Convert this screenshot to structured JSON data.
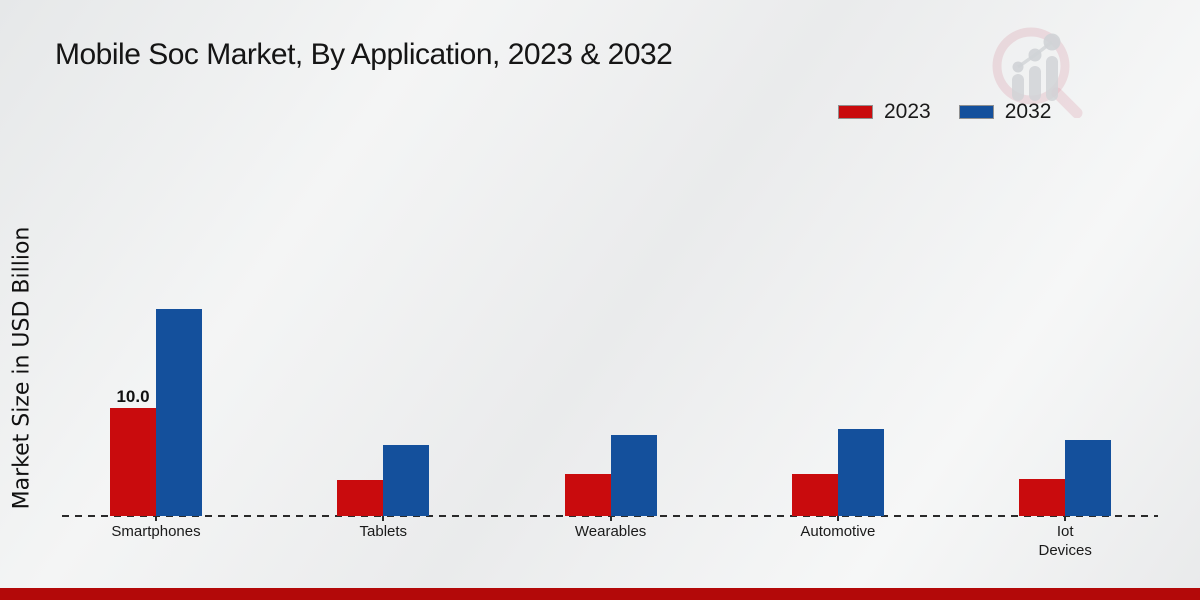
{
  "title": "Mobile Soc Market, By Application, 2023 & 2032",
  "ylabel": "Market Size in USD Billion",
  "legend": {
    "items": [
      {
        "label": "2023",
        "color": "#c90b0d"
      },
      {
        "label": "2032",
        "color": "#14509c"
      }
    ]
  },
  "footer": {
    "color": "#b30909"
  },
  "watermark_icon": "magnifier-bar-chart-logo",
  "chart_data": {
    "type": "bar",
    "categories": [
      "Smartphones",
      "Tablets",
      "Wearables",
      "Automotive",
      "Iot\nDevices"
    ],
    "series": [
      {
        "name": "2023",
        "color": "#c90b0d",
        "values": [
          10.0,
          3.3,
          3.9,
          3.9,
          3.4
        ],
        "value_labels": [
          "10.0",
          "",
          "",
          "",
          ""
        ]
      },
      {
        "name": "2032",
        "color": "#14509c",
        "values": [
          19.2,
          6.6,
          7.5,
          8.1,
          7.0
        ],
        "value_labels": [
          "",
          "",
          "",
          "",
          ""
        ]
      }
    ],
    "title": "Mobile Soc Market, By Application, 2023 & 2032",
    "xlabel": "",
    "ylabel": "Market Size in USD Billion",
    "ylim": [
      0,
      20
    ],
    "grid": false,
    "y_ticks_visible": false,
    "legend_position": "top-right",
    "baseline_style": "dashed"
  }
}
